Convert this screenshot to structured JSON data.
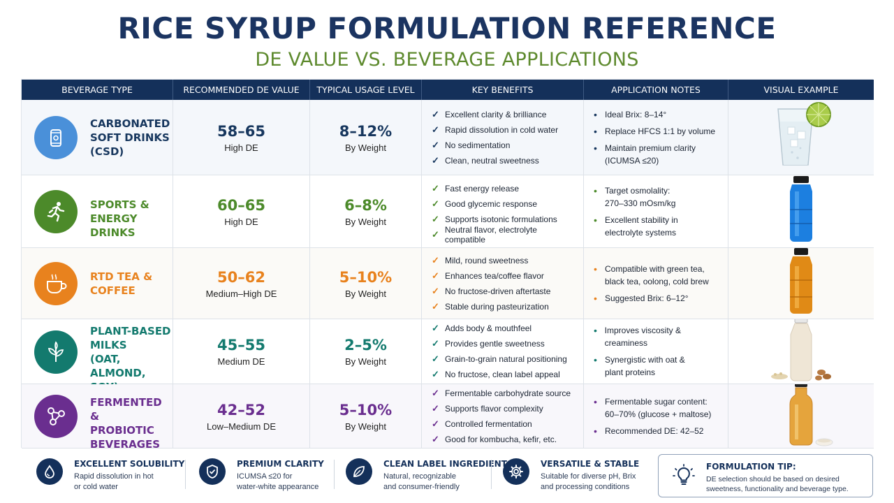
{
  "header": {
    "title": "RICE SYRUP FORMULATION REFERENCE",
    "subtitle": "DE VALUE VS. BEVERAGE APPLICATIONS"
  },
  "columns": [
    "BEVERAGE TYPE",
    "RECOMMENDED DE VALUE",
    "TYPICAL USAGE LEVEL",
    "KEY BENEFITS",
    "APPLICATION NOTES",
    "VISUAL EXAMPLE"
  ],
  "colors": {
    "navy": "#14305a",
    "csd": "#17375e",
    "sports": "#4c8a2a",
    "tea": "#e8821e",
    "plant": "#137a6e",
    "ferment": "#6a2e8f"
  },
  "rows": [
    {
      "name": "CARBONATED\nSOFT DRINKS\n(CSD)",
      "icon": "soda-can-icon",
      "de": "58–65",
      "de_label": "High DE",
      "usage": "8–12%",
      "usage_label": "By Weight",
      "benefits": [
        "Excellent clarity & brilliance",
        "Rapid dissolution in cold water",
        "No sedimentation",
        "Clean, neutral sweetness"
      ],
      "notes": [
        "Ideal Brix: 8–14°",
        "Replace HFCS 1:1 by volume",
        "Maintain premium clarity\n(ICUMSA ≤20)"
      ],
      "visual": "glass-of-soda-with-lime"
    },
    {
      "name": "SPORTS &\nENERGY DRINKS",
      "icon": "runner-icon",
      "de": "60–65",
      "de_label": "High DE",
      "usage": "6–8%",
      "usage_label": "By Weight",
      "benefits": [
        "Fast energy release",
        "Good glycemic response",
        "Supports isotonic formulations",
        "Neutral flavor, electrolyte compatible"
      ],
      "notes": [
        "Target osmolality:\n270–330 mOsm/kg",
        "Excellent stability in\nelectrolyte systems"
      ],
      "visual": "blue-sports-drink-bottle"
    },
    {
      "name": "RTD TEA &\nCOFFEE",
      "icon": "cup-icon",
      "de": "50–62",
      "de_label": "Medium–High DE",
      "usage": "5–10%",
      "usage_label": "By Weight",
      "benefits": [
        "Mild, round sweetness",
        "Enhances tea/coffee flavor",
        "No fructose-driven aftertaste",
        "Stable during pasteurization"
      ],
      "notes": [
        "Compatible with green tea,\nblack tea, oolong, cold brew",
        "Suggested Brix: 6–12°"
      ],
      "visual": "amber-tea-bottle"
    },
    {
      "name": "PLANT-BASED\nMILKS\n(OAT, ALMOND,\nSOY)",
      "icon": "leaf-sprout-icon",
      "de": "45–55",
      "de_label": "Medium DE",
      "usage": "2–5%",
      "usage_label": "By Weight",
      "benefits": [
        "Adds body & mouthfeel",
        "Provides gentle sweetness",
        "Grain-to-grain natural positioning",
        "No fructose, clean label appeal"
      ],
      "notes": [
        "Improves viscosity & creaminess",
        "Synergistic with oat &\nplant proteins"
      ],
      "visual": "plant-milk-bottle-with-almonds"
    },
    {
      "name": "FERMENTED &\nPROBIOTIC\nBEVERAGES",
      "icon": "molecule-icon",
      "de": "42–52",
      "de_label": "Low–Medium DE",
      "usage": "5–10%",
      "usage_label": "By Weight",
      "benefits": [
        "Fermentable carbohydrate source",
        "Supports flavor complexity",
        "Controlled fermentation",
        "Good for kombucha, kefir, etc."
      ],
      "notes": [
        "Fermentable sugar content:\n60–70% (glucose + maltose)",
        "Recommended DE:  42–52"
      ],
      "visual": "kombucha-bottle"
    }
  ],
  "footer": {
    "features": [
      {
        "title": "EXCELLENT SOLUBILITY",
        "text": "Rapid dissolution in hot\nor cold water",
        "icon": "water-drop-icon"
      },
      {
        "title": "PREMIUM CLARITY",
        "text": "ICUMSA ≤20 for\nwater-white appearance",
        "icon": "shield-check-icon"
      },
      {
        "title": "CLEAN LABEL INGREDIENT",
        "text": "Natural, recognizable\nand consumer-friendly",
        "icon": "leaf-icon"
      },
      {
        "title": "VERSATILE & STABLE",
        "text": "Suitable for diverse pH, Brix\nand processing conditions",
        "icon": "gear-icon"
      }
    ],
    "tip": {
      "title": "FORMULATION TIP:",
      "text": "DE selection should be based on desired\nsweetness, functionality and beverage type.",
      "icon": "lightbulb-icon"
    }
  }
}
